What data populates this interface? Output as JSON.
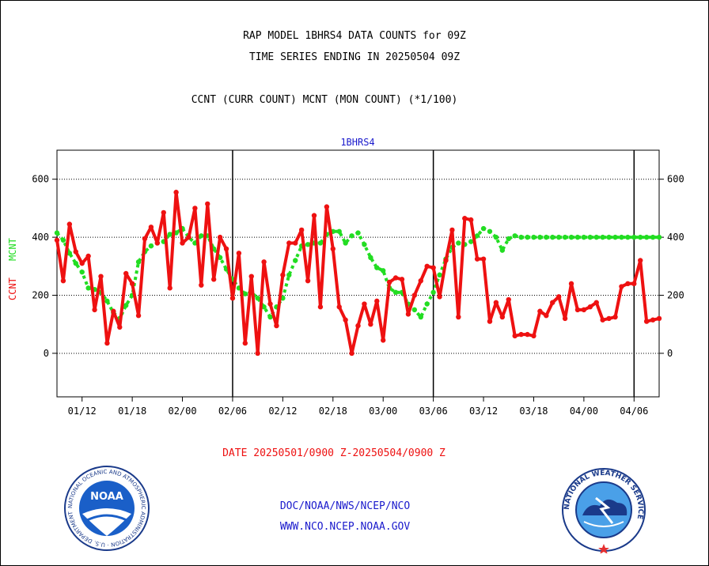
{
  "header": {
    "line1": "RAP MODEL 1BHRS4 DATA COUNTS for 09Z",
    "line2": "TIME SERIES ENDING IN 20250504 09Z",
    "line3": "CCNT (CURR COUNT) MCNT (MON COUNT) (*1/100)"
  },
  "footer": {
    "date_range": "DATE 20250501/0900 Z-20250504/0900 Z",
    "org": "DOC/NOAA/NWS/NCEP/NCO",
    "url": "WWW.NCO.NCEP.NOAA.GOV"
  },
  "logos": {
    "noaa_text": "NOAA",
    "noaa_ring": "NATIONAL OCEANIC AND ATMOSPHERIC ADMINISTRATION · U.S. DEPARTMENT OF COMMERCE ·",
    "nws_ring": "NATIONAL WEATHER SERVICE"
  },
  "colors": {
    "ccnt": "#ee1111",
    "mcnt": "#22dd22",
    "title_blue": "#1a1acc",
    "footer_red": "#ee1111",
    "footer_blue": "#1a1acc"
  },
  "chart_data": {
    "type": "line",
    "title": "1BHRS4",
    "ylabel_ccnt": "CCNT",
    "ylabel_mcnt": "MCNT",
    "ylim": [
      -150,
      700
    ],
    "yticks": [
      0,
      200,
      400,
      600
    ],
    "ytick_labels": [
      "0",
      "200",
      "400",
      "600"
    ],
    "grid": true,
    "x_count": 97,
    "xticks": [
      {
        "label": "01/12",
        "i": 4
      },
      {
        "label": "01/18",
        "i": 12
      },
      {
        "label": "02/00",
        "i": 20
      },
      {
        "label": "02/06",
        "i": 28
      },
      {
        "label": "02/12",
        "i": 36
      },
      {
        "label": "02/18",
        "i": 44
      },
      {
        "label": "03/00",
        "i": 52
      },
      {
        "label": "03/06",
        "i": 60
      },
      {
        "label": "03/12",
        "i": 68
      },
      {
        "label": "03/18",
        "i": 76
      },
      {
        "label": "04/00",
        "i": 84
      },
      {
        "label": "04/06",
        "i": 92
      }
    ],
    "day_boundaries": [
      28,
      60,
      92
    ],
    "series": [
      {
        "name": "CCNT",
        "values": [
          390,
          250,
          445,
          350,
          310,
          335,
          150,
          265,
          35,
          145,
          90,
          275,
          240,
          130,
          395,
          435,
          380,
          485,
          225,
          555,
          380,
          400,
          500,
          235,
          515,
          255,
          400,
          360,
          190,
          345,
          35,
          265,
          0,
          315,
          170,
          95,
          270,
          380,
          380,
          425,
          250,
          475,
          160,
          505,
          360,
          160,
          115,
          0,
          95,
          170,
          100,
          180,
          45,
          245,
          260,
          255,
          135,
          200,
          250,
          300,
          295,
          195,
          320,
          425,
          125,
          465,
          460,
          325,
          325,
          110,
          175,
          125,
          185,
          60,
          65,
          65,
          60,
          145,
          130,
          175,
          195,
          120,
          240,
          150,
          150,
          160,
          175,
          115,
          120,
          125,
          230,
          240,
          240,
          320,
          110,
          115,
          120
        ]
      },
      {
        "name": "MCNT",
        "values": [
          415,
          390,
          345,
          310,
          280,
          225,
          220,
          210,
          180,
          140,
          120,
          165,
          200,
          315,
          350,
          370,
          380,
          385,
          410,
          415,
          430,
          400,
          380,
          405,
          405,
          360,
          330,
          290,
          255,
          225,
          205,
          210,
          190,
          160,
          125,
          160,
          190,
          270,
          320,
          370,
          375,
          380,
          380,
          410,
          420,
          420,
          380,
          405,
          415,
          375,
          330,
          295,
          285,
          225,
          210,
          210,
          170,
          150,
          125,
          170,
          210,
          270,
          325,
          365,
          380,
          375,
          385,
          405,
          430,
          420,
          400,
          355,
          395,
          405,
          400,
          400,
          400,
          400,
          400,
          400,
          400,
          400,
          400,
          400,
          400,
          400,
          400,
          400,
          400,
          400,
          400,
          400,
          400,
          400,
          400,
          400,
          400
        ]
      }
    ]
  }
}
